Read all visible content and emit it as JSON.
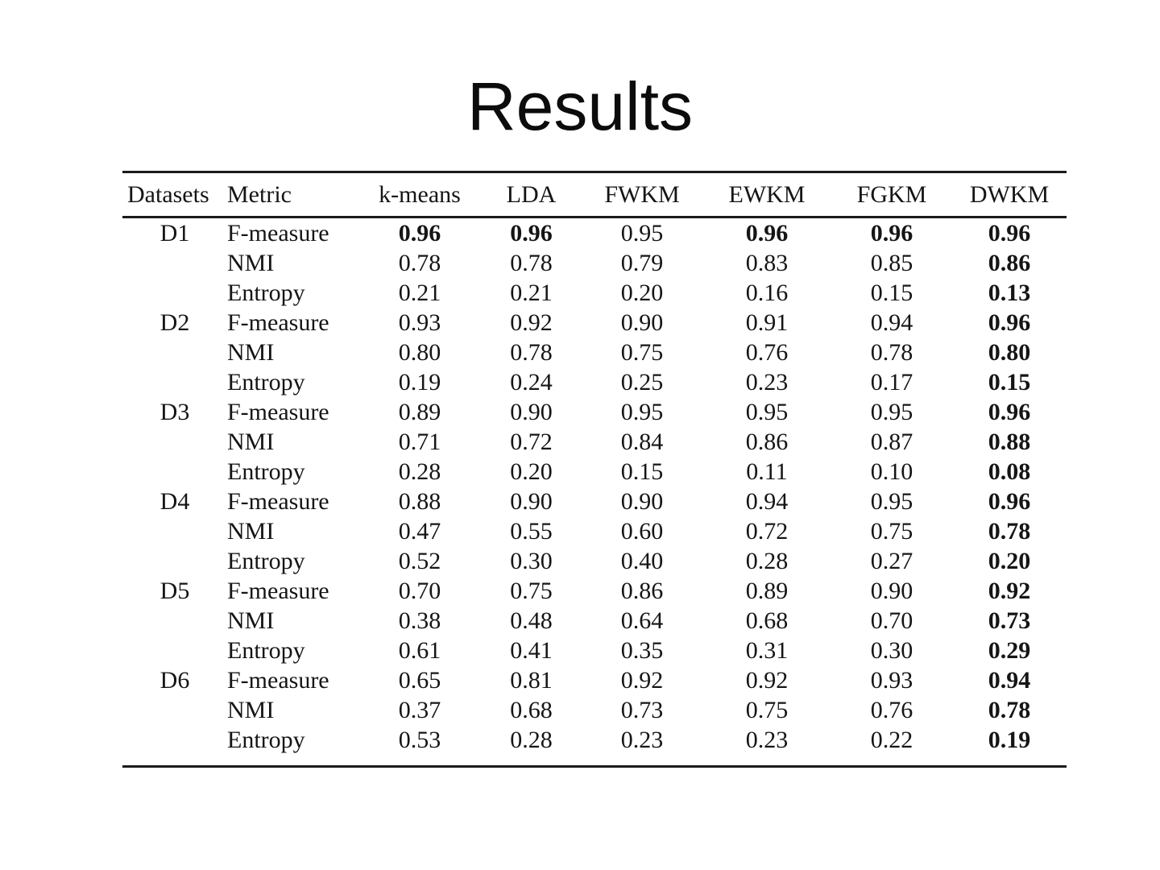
{
  "title": "Results",
  "table": {
    "columns": [
      "Datasets",
      "Metric",
      "k-means",
      "LDA",
      "FWKM",
      "EWKM",
      "FGKM",
      "DWKM"
    ],
    "text_color": "#151515",
    "rule_color": "#1a1a1a",
    "groups": [
      {
        "dataset": "D1",
        "rows": [
          {
            "metric": "F-measure",
            "values": [
              "0.96",
              "0.96",
              "0.95",
              "0.96",
              "0.96",
              "0.96"
            ],
            "bold": [
              true,
              true,
              false,
              true,
              true,
              true
            ]
          },
          {
            "metric": "NMI",
            "values": [
              "0.78",
              "0.78",
              "0.79",
              "0.83",
              "0.85",
              "0.86"
            ],
            "bold": [
              false,
              false,
              false,
              false,
              false,
              true
            ]
          },
          {
            "metric": "Entropy",
            "values": [
              "0.21",
              "0.21",
              "0.20",
              "0.16",
              "0.15",
              "0.13"
            ],
            "bold": [
              false,
              false,
              false,
              false,
              false,
              true
            ]
          }
        ]
      },
      {
        "dataset": "D2",
        "rows": [
          {
            "metric": "F-measure",
            "values": [
              "0.93",
              "0.92",
              "0.90",
              "0.91",
              "0.94",
              "0.96"
            ],
            "bold": [
              false,
              false,
              false,
              false,
              false,
              true
            ]
          },
          {
            "metric": "NMI",
            "values": [
              "0.80",
              "0.78",
              "0.75",
              "0.76",
              "0.78",
              "0.80"
            ],
            "bold": [
              false,
              false,
              false,
              false,
              false,
              true
            ]
          },
          {
            "metric": "Entropy",
            "values": [
              "0.19",
              "0.24",
              "0.25",
              "0.23",
              "0.17",
              "0.15"
            ],
            "bold": [
              false,
              false,
              false,
              false,
              false,
              true
            ]
          }
        ]
      },
      {
        "dataset": "D3",
        "rows": [
          {
            "metric": "F-measure",
            "values": [
              "0.89",
              "0.90",
              "0.95",
              "0.95",
              "0.95",
              "0.96"
            ],
            "bold": [
              false,
              false,
              false,
              false,
              false,
              true
            ]
          },
          {
            "metric": "NMI",
            "values": [
              "0.71",
              "0.72",
              "0.84",
              "0.86",
              "0.87",
              "0.88"
            ],
            "bold": [
              false,
              false,
              false,
              false,
              false,
              true
            ]
          },
          {
            "metric": "Entropy",
            "values": [
              "0.28",
              "0.20",
              "0.15",
              "0.11",
              "0.10",
              "0.08"
            ],
            "bold": [
              false,
              false,
              false,
              false,
              false,
              true
            ]
          }
        ]
      },
      {
        "dataset": "D4",
        "rows": [
          {
            "metric": "F-measure",
            "values": [
              "0.88",
              "0.90",
              "0.90",
              "0.94",
              "0.95",
              "0.96"
            ],
            "bold": [
              false,
              false,
              false,
              false,
              false,
              true
            ]
          },
          {
            "metric": "NMI",
            "values": [
              "0.47",
              "0.55",
              "0.60",
              "0.72",
              "0.75",
              "0.78"
            ],
            "bold": [
              false,
              false,
              false,
              false,
              false,
              true
            ]
          },
          {
            "metric": "Entropy",
            "values": [
              "0.52",
              "0.30",
              "0.40",
              "0.28",
              "0.27",
              "0.20"
            ],
            "bold": [
              false,
              false,
              false,
              false,
              false,
              true
            ]
          }
        ]
      },
      {
        "dataset": "D5",
        "rows": [
          {
            "metric": "F-measure",
            "values": [
              "0.70",
              "0.75",
              "0.86",
              "0.89",
              "0.90",
              "0.92"
            ],
            "bold": [
              false,
              false,
              false,
              false,
              false,
              true
            ]
          },
          {
            "metric": "NMI",
            "values": [
              "0.38",
              "0.48",
              "0.64",
              "0.68",
              "0.70",
              "0.73"
            ],
            "bold": [
              false,
              false,
              false,
              false,
              false,
              true
            ]
          },
          {
            "metric": "Entropy",
            "values": [
              "0.61",
              "0.41",
              "0.35",
              "0.31",
              "0.30",
              "0.29"
            ],
            "bold": [
              false,
              false,
              false,
              false,
              false,
              true
            ]
          }
        ]
      },
      {
        "dataset": "D6",
        "rows": [
          {
            "metric": "F-measure",
            "values": [
              "0.65",
              "0.81",
              "0.92",
              "0.92",
              "0.93",
              "0.94"
            ],
            "bold": [
              false,
              false,
              false,
              false,
              false,
              true
            ]
          },
          {
            "metric": "NMI",
            "values": [
              "0.37",
              "0.68",
              "0.73",
              "0.75",
              "0.76",
              "0.78"
            ],
            "bold": [
              false,
              false,
              false,
              false,
              false,
              true
            ]
          },
          {
            "metric": "Entropy",
            "values": [
              "0.53",
              "0.28",
              "0.23",
              "0.23",
              "0.22",
              "0.19"
            ],
            "bold": [
              false,
              false,
              false,
              false,
              false,
              true
            ]
          }
        ]
      }
    ]
  }
}
